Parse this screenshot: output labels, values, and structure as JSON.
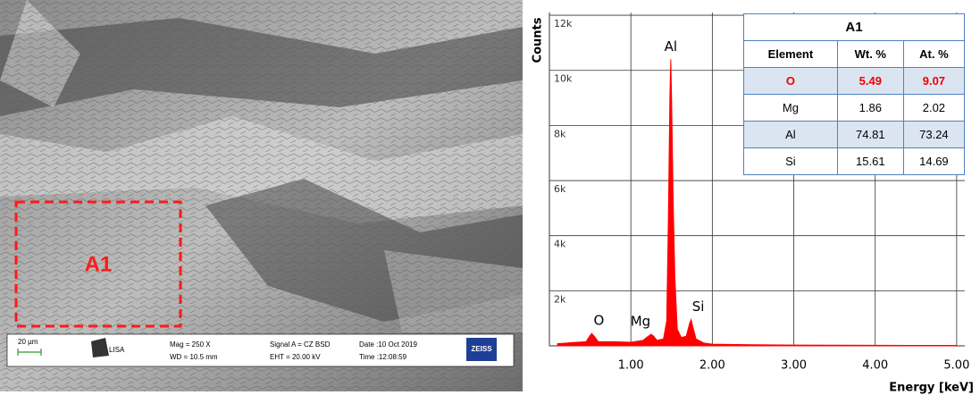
{
  "image": {
    "region_label": "A1",
    "scale": "20 µm",
    "logo": "LISA",
    "mag": "Mag =    250 X",
    "wd": "WD = 10.5 mm",
    "signal": "Signal A = CZ BSD",
    "eht": "EHT = 20.00 kV",
    "date": "Date :10 Oct 2019",
    "time": "Time :12:08:59",
    "brand": "ZEISS"
  },
  "chart_data": {
    "type": "area",
    "y_label": "Counts",
    "x_label": "Energy [keV]",
    "color": "#ff0000",
    "grid": true,
    "x": [
      0.1,
      0.3,
      0.45,
      0.5,
      0.52,
      0.55,
      0.6,
      0.8,
      1.0,
      1.15,
      1.2,
      1.25,
      1.28,
      1.32,
      1.4,
      1.44,
      1.46,
      1.48,
      1.49,
      1.5,
      1.52,
      1.54,
      1.57,
      1.62,
      1.68,
      1.72,
      1.74,
      1.76,
      1.8,
      1.9,
      2.0,
      2.5,
      3.0,
      4.0,
      5.0
    ],
    "values": [
      80,
      120,
      150,
      380,
      450,
      350,
      150,
      150,
      130,
      200,
      320,
      420,
      350,
      200,
      250,
      900,
      4500,
      9200,
      10400,
      9000,
      5200,
      2500,
      600,
      300,
      350,
      800,
      950,
      700,
      250,
      100,
      60,
      40,
      30,
      20,
      15
    ],
    "xlim": [
      0,
      5.1
    ],
    "ylim": [
      0,
      12100
    ],
    "xticks": [
      {
        "value": 1,
        "label": "1.00"
      },
      {
        "value": 2,
        "label": "2.00"
      },
      {
        "value": 3,
        "label": "3.00"
      },
      {
        "value": 4,
        "label": "4.00"
      },
      {
        "value": 5,
        "label": "5.00"
      }
    ],
    "yticks": [
      {
        "value": 2000,
        "label": "2k"
      },
      {
        "value": 4000,
        "label": "4k"
      },
      {
        "value": 6000,
        "label": "6k"
      },
      {
        "value": 8000,
        "label": "8k"
      },
      {
        "value": 10000,
        "label": "10k"
      },
      {
        "value": 12000,
        "label": "12k"
      }
    ],
    "annotations": [
      {
        "text": "O",
        "x": 0.52
      },
      {
        "text": "Mg",
        "x": 1.25
      },
      {
        "text": "Al",
        "x": 1.49
      },
      {
        "text": "Si",
        "x": 1.74
      }
    ]
  },
  "table": {
    "title": "A1",
    "header": [
      "Element",
      "Wt. %",
      "At. %"
    ],
    "rows": [
      [
        "O",
        5.49,
        9.07
      ],
      [
        "Mg",
        1.86,
        2.02
      ],
      [
        "Al",
        74.81,
        73.24
      ],
      [
        "Si",
        15.61,
        14.69
      ]
    ]
  }
}
